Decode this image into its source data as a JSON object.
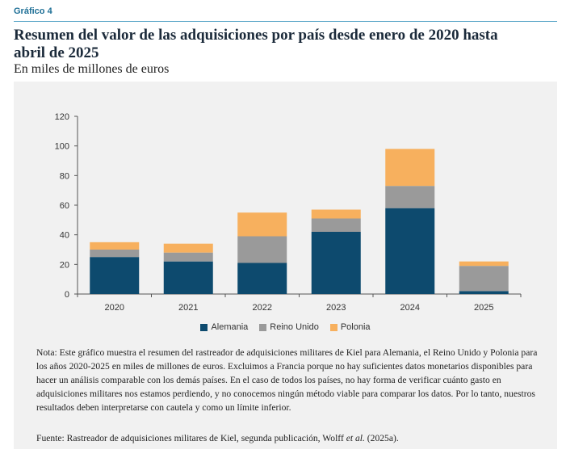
{
  "figure": {
    "label": "Gráfico 4",
    "title": "Resumen del valor de las adquisiciones por país desde enero de 2020 hasta abril de 2025",
    "subtitle": "En miles de millones de euros",
    "note": "Nota: Este gráfico muestra el resumen del rastreador de adquisiciones militares de Kiel para Alemania, el Reino Unido y Polonia para los años 2020-2025 en miles de millones de euros. Excluimos a Francia porque no hay suficientes datos monetarios disponibles para hacer un análisis comparable con los demás países. En el caso de todos los países, no hay forma de verificar cuánto gasto en adquisiciones militares nos estamos perdiendo, y no conocemos ningún método viable para comparar los datos. Por lo tanto, nuestros resultados deben interpretarse con cautela y como un límite inferior.",
    "source_prefix": "Fuente:  Rastreador de adquisiciones militares de Kiel, segunda publicación, Wolff ",
    "source_italic": "et al.",
    "source_suffix": " (2025a)."
  },
  "chart_data": {
    "type": "bar",
    "stacked": true,
    "categories": [
      "2020",
      "2021",
      "2022",
      "2023",
      "2024",
      "2025"
    ],
    "series": [
      {
        "name": "Alemania",
        "color": "#0d4a6e",
        "values": [
          25,
          22,
          21,
          42,
          58,
          2
        ]
      },
      {
        "name": "Reino Unido",
        "color": "#9a9a9a",
        "values": [
          5,
          6,
          18,
          9,
          15,
          17
        ]
      },
      {
        "name": "Polonia",
        "color": "#f7b05e",
        "values": [
          5,
          6,
          16,
          6,
          25,
          3
        ]
      }
    ],
    "ylim": [
      0,
      120
    ],
    "yticks": [
      0,
      20,
      40,
      60,
      80,
      100,
      120
    ],
    "grid": false,
    "legend": "bottom"
  }
}
